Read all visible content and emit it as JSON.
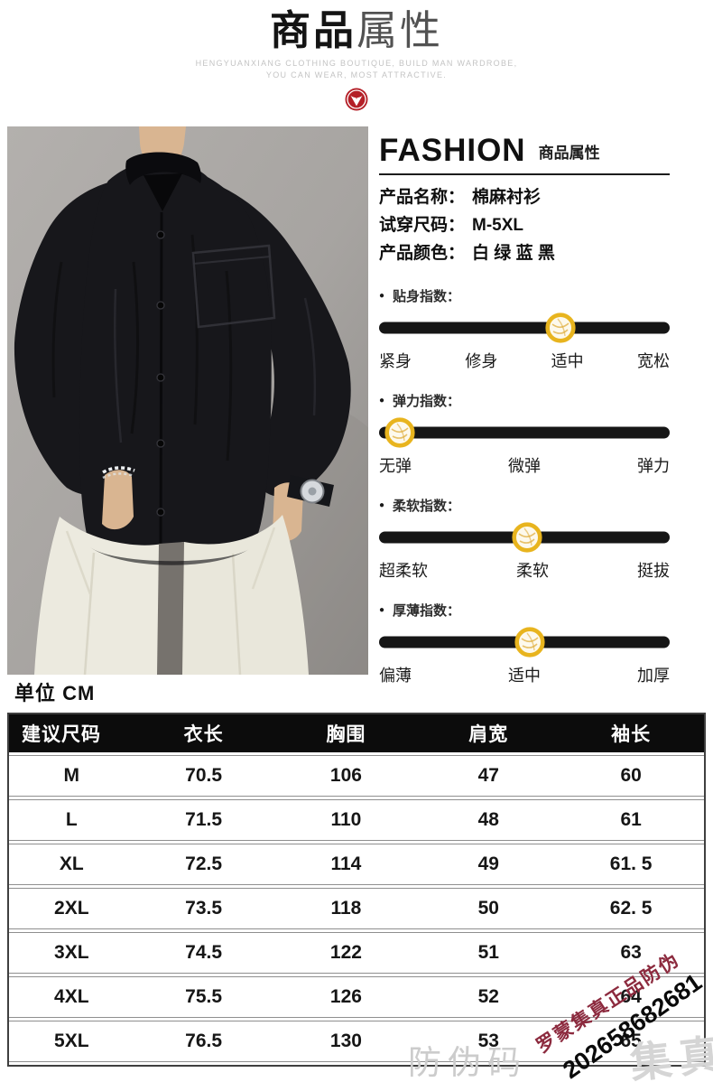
{
  "header": {
    "title_bold": "商品",
    "title_light": "属性",
    "tagline_line1": "HENGYUANXIANG CLOTHING BOUTIQUE, BUILD MAN WARDROBE,",
    "tagline_line2": "YOU CAN WEAR, MOST ATTRACTIVE.",
    "badge_color": "#b41f27"
  },
  "photo": {
    "background_color": "#a7a4a1",
    "shirt_color": "#17171b",
    "pants_color": "#eceadf",
    "skin_color": "#d9b591"
  },
  "attributes": {
    "brand": "FASHION",
    "section_caption": "商品属性",
    "bullet": "●",
    "fields": [
      {
        "label": "产品名称：",
        "value": "棉麻衬衫"
      },
      {
        "label": "试穿尺码：",
        "value": "M-5XL"
      },
      {
        "label": "产品颜色：",
        "value": "白 绿 蓝 黑"
      }
    ],
    "slider_bar_color": "#161616",
    "slider_marker_color": "#e8b41e",
    "sliders": [
      {
        "title": "贴身指数：",
        "position_pct": 62.5,
        "labels": [
          "紧身",
          "修身",
          "适中",
          "宽松"
        ]
      },
      {
        "title": "弹力指数：",
        "position_pct": 7,
        "labels": [
          "无弹",
          "微弹",
          "弹力"
        ]
      },
      {
        "title": "柔软指数：",
        "position_pct": 51,
        "labels": [
          "超柔软",
          "柔软",
          "挺拔"
        ]
      },
      {
        "title": "厚薄指数：",
        "position_pct": 52,
        "labels": [
          "偏薄",
          "适中",
          "加厚"
        ]
      }
    ]
  },
  "size_chart": {
    "unit_label": "单位 CM",
    "columns": [
      "建议尺码",
      "衣长",
      "胸围",
      "肩宽",
      "袖长"
    ],
    "rows": [
      [
        "M",
        "70.5",
        "106",
        "47",
        "60"
      ],
      [
        "L",
        "71.5",
        "110",
        "48",
        "61"
      ],
      [
        "XL",
        "72.5",
        "114",
        "49",
        "61. 5"
      ],
      [
        "2XL",
        "73.5",
        "118",
        "50",
        "62. 5"
      ],
      [
        "3XL",
        "74.5",
        "122",
        "51",
        "63"
      ],
      [
        "4XL",
        "75.5",
        "126",
        "52",
        "64"
      ],
      [
        "5XL",
        "76.5",
        "130",
        "53",
        "65"
      ]
    ]
  },
  "watermark": {
    "anti_fake_label": "防伪码",
    "brand_stamp": "罗蒙集真正品防伪",
    "stamp_color": "#8c2a3e",
    "code": "202658682681",
    "faded_characters": "集真"
  }
}
